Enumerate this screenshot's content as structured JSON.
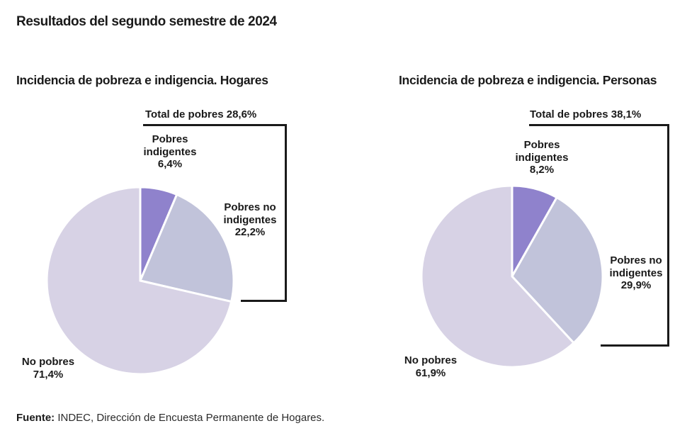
{
  "page": {
    "title": "Resultados del segundo semestre de 2024",
    "source": {
      "label": "Fuente:",
      "text": " INDEC, Dirección de Encuesta Permanente de Hogares."
    }
  },
  "colors": {
    "indigent": "#8f82cc",
    "poor_not_indigent": "#c1c3da",
    "not_poor": "#d7d2e5",
    "slice_border": "#ffffff",
    "bracket": "#1a1a1a"
  },
  "chart_data": [
    {
      "type": "pie",
      "title": "Incidencia de pobreza e indigencia. Hogares",
      "total_label": "Total de pobres 28,6%",
      "total_value": 28.6,
      "start_angle_deg": 0,
      "direction": "clockwise",
      "legend_position": "callout-labels",
      "slices": [
        {
          "name": "pobres-indigentes",
          "label_lines": [
            "Pobres",
            "indigentes"
          ],
          "display": "6,4%",
          "value": 6.4,
          "color_key": "indigent"
        },
        {
          "name": "pobres-no-indigentes",
          "label_lines": [
            "Pobres no",
            "indigentes"
          ],
          "display": "22,2%",
          "value": 22.2,
          "color_key": "poor_not_indigent"
        },
        {
          "name": "no-pobres",
          "label_lines": [
            "No pobres"
          ],
          "display": "71,4%",
          "value": 71.4,
          "color_key": "not_poor"
        }
      ]
    },
    {
      "type": "pie",
      "title": "Incidencia de pobreza e indigencia. Personas",
      "total_label": "Total de pobres 38,1%",
      "total_value": 38.1,
      "start_angle_deg": 0,
      "direction": "clockwise",
      "legend_position": "callout-labels",
      "slices": [
        {
          "name": "pobres-indigentes",
          "label_lines": [
            "Pobres",
            "indigentes"
          ],
          "display": "8,2%",
          "value": 8.2,
          "color_key": "indigent"
        },
        {
          "name": "pobres-no-indigentes",
          "label_lines": [
            "Pobres no",
            "indigentes"
          ],
          "display": "29,9%",
          "value": 29.9,
          "color_key": "poor_not_indigent"
        },
        {
          "name": "no-pobres",
          "label_lines": [
            "No pobres"
          ],
          "display": "61,9%",
          "value": 61.9,
          "color_key": "not_poor"
        }
      ]
    }
  ]
}
